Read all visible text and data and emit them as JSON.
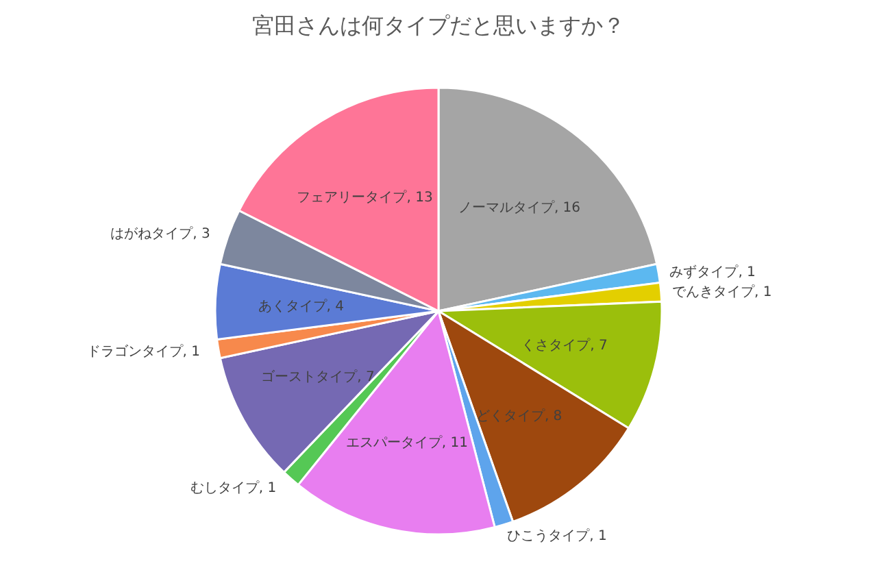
{
  "chart_data": {
    "type": "pie",
    "title": "宮田さんは何タイプだと思いますか？",
    "categories": [
      "ノーマルタイプ",
      "みずタイプ",
      "でんきタイプ",
      "くさタイプ",
      "どくタイプ",
      "ひこうタイプ",
      "エスパータイプ",
      "むしタイプ",
      "ゴーストタイプ",
      "ドラゴンタイプ",
      "あくタイプ",
      "はがねタイプ",
      "フェアリータイプ"
    ],
    "values": [
      16,
      1,
      1,
      7,
      8,
      1,
      11,
      1,
      7,
      1,
      4,
      3,
      13
    ],
    "colors": [
      "#a5a5a5",
      "#5cb8f0",
      "#e3cf00",
      "#9bbf0c",
      "#9e480e",
      "#5ea4ec",
      "#e87ef0",
      "#55c855",
      "#7569b3",
      "#f7894c",
      "#5b7bd5",
      "#7d879e",
      "#fe7597"
    ],
    "value_labels": [
      ", 16",
      ", 1",
      ", 1",
      ", 7",
      ", 8",
      ", 1",
      ", 11",
      ", 1",
      ", 7",
      ", 1",
      ", 4",
      ", 3",
      ", 13"
    ]
  }
}
